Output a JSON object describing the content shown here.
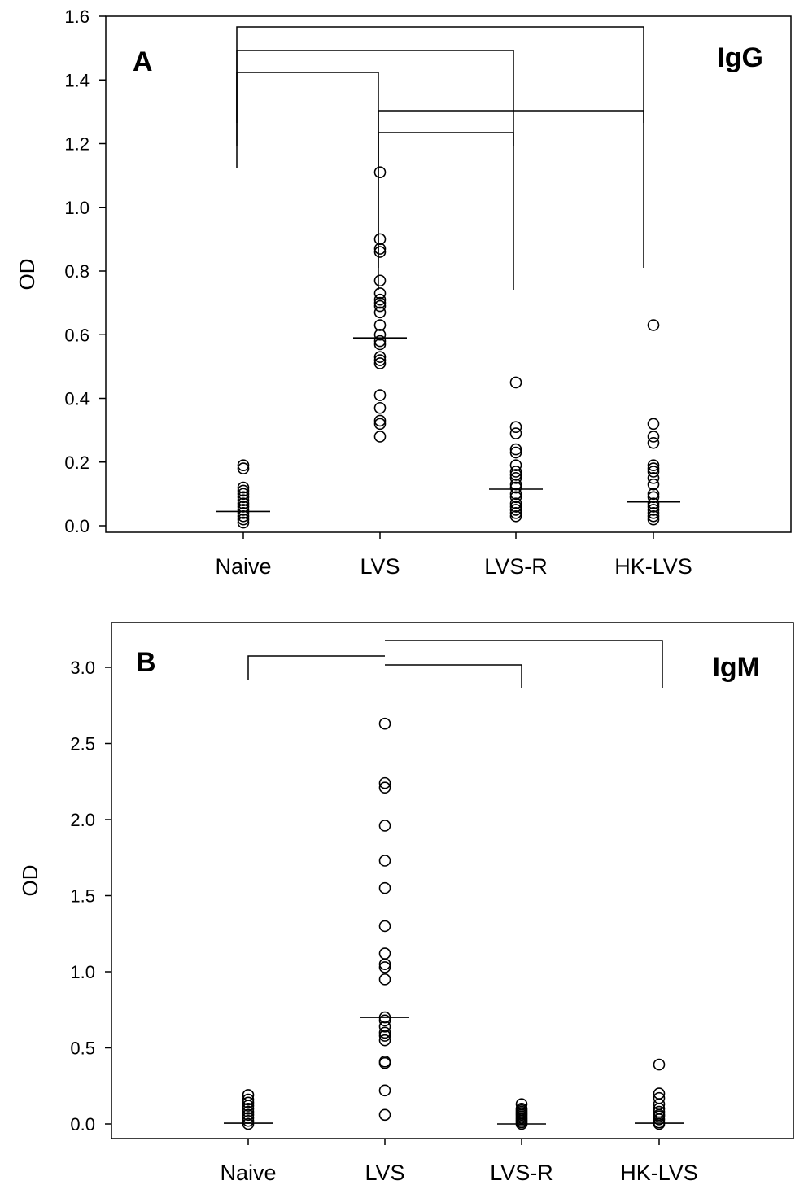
{
  "chart_data": [
    {
      "type": "scatter",
      "panel_label": "A",
      "antibody_label": "IgG",
      "xlabel": "",
      "ylabel": "OD",
      "ylim": [
        0,
        1.6
      ],
      "y_ticks": [
        "0.0",
        "0.2",
        "0.4",
        "0.6",
        "0.8",
        "1.0",
        "1.2",
        "1.4",
        "1.6"
      ],
      "categories": [
        "Naive",
        "LVS",
        "LVS-R",
        "HK-LVS"
      ],
      "series": [
        {
          "category": "Naive",
          "median": 0.045,
          "values": [
            0.19,
            0.18,
            0.12,
            0.11,
            0.1,
            0.09,
            0.08,
            0.07,
            0.06,
            0.05,
            0.04,
            0.03,
            0.02,
            0.01
          ]
        },
        {
          "category": "LVS",
          "median": 0.59,
          "values": [
            1.11,
            0.9,
            0.87,
            0.86,
            0.77,
            0.73,
            0.71,
            0.7,
            0.69,
            0.67,
            0.63,
            0.6,
            0.58,
            0.57,
            0.53,
            0.52,
            0.51,
            0.41,
            0.37,
            0.33,
            0.32,
            0.28
          ]
        },
        {
          "category": "LVS-R",
          "median": 0.115,
          "values": [
            0.45,
            0.31,
            0.29,
            0.24,
            0.23,
            0.19,
            0.17,
            0.16,
            0.15,
            0.13,
            0.12,
            0.1,
            0.09,
            0.07,
            0.06,
            0.05,
            0.04,
            0.03
          ]
        },
        {
          "category": "HK-LVS",
          "median": 0.075,
          "values": [
            0.63,
            0.32,
            0.28,
            0.26,
            0.19,
            0.18,
            0.17,
            0.15,
            0.13,
            0.1,
            0.09,
            0.07,
            0.06,
            0.05,
            0.04,
            0.03,
            0.02
          ]
        }
      ],
      "significance_brackets": [
        {
          "from": "Naive",
          "to": "HK-LVS"
        },
        {
          "from": "Naive",
          "to": "LVS-R"
        },
        {
          "from": "Naive",
          "to": "LVS"
        },
        {
          "from": "LVS",
          "to": "HK-LVS"
        },
        {
          "from": "LVS",
          "to": "LVS-R"
        }
      ]
    },
    {
      "type": "scatter",
      "panel_label": "B",
      "antibody_label": "IgM",
      "xlabel": "",
      "ylabel": "OD",
      "ylim": [
        0,
        3.0
      ],
      "y_ticks": [
        "0.0",
        "0.5",
        "1.0",
        "1.5",
        "2.0",
        "2.5",
        "3.0"
      ],
      "categories": [
        "Naive",
        "LVS",
        "LVS-R",
        "HK-LVS"
      ],
      "series": [
        {
          "category": "Naive",
          "median": 0.005,
          "values": [
            0.19,
            0.16,
            0.14,
            0.12,
            0.1,
            0.08,
            0.06,
            0.04,
            0.02,
            0.0
          ]
        },
        {
          "category": "LVS",
          "median": 0.7,
          "values": [
            2.63,
            2.24,
            2.21,
            1.96,
            1.73,
            1.55,
            1.3,
            1.12,
            1.05,
            1.03,
            0.95,
            0.7,
            0.68,
            0.64,
            0.6,
            0.58,
            0.55,
            0.41,
            0.4,
            0.22,
            0.06
          ]
        },
        {
          "category": "LVS-R",
          "median": 0.0,
          "values": [
            0.13,
            0.1,
            0.09,
            0.08,
            0.07,
            0.06,
            0.05,
            0.04,
            0.03,
            0.02,
            0.01,
            0.0
          ]
        },
        {
          "category": "HK-LVS",
          "median": 0.005,
          "values": [
            0.39,
            0.2,
            0.17,
            0.13,
            0.1,
            0.08,
            0.06,
            0.05,
            0.03,
            0.01,
            0.0
          ]
        }
      ],
      "significance_brackets": [
        {
          "from": "Naive",
          "to": "LVS"
        },
        {
          "from": "LVS",
          "to": "HK-LVS"
        },
        {
          "from": "LVS",
          "to": "LVS-R"
        }
      ]
    }
  ]
}
